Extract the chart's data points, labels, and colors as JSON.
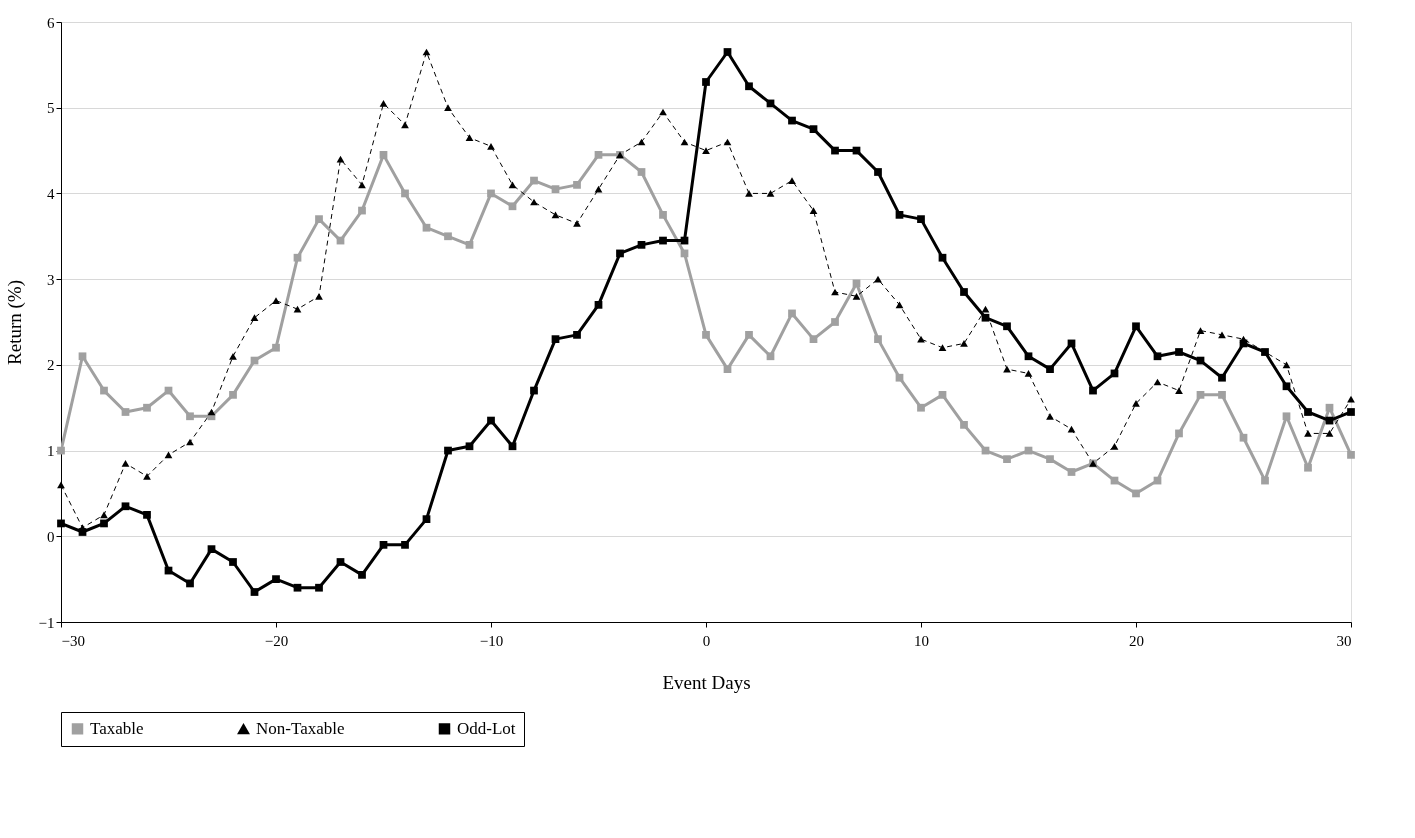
{
  "chart_data": {
    "type": "line",
    "xlabel": "Event Days",
    "ylabel": "Return (%)",
    "x": [
      -30,
      -29,
      -28,
      -27,
      -26,
      -25,
      -24,
      -23,
      -22,
      -21,
      -20,
      -19,
      -18,
      -17,
      -16,
      -15,
      -14,
      -13,
      -12,
      -11,
      -10,
      -9,
      -8,
      -7,
      -6,
      -5,
      -4,
      -3,
      -2,
      -1,
      0,
      1,
      2,
      3,
      4,
      5,
      6,
      7,
      8,
      9,
      10,
      11,
      12,
      13,
      14,
      15,
      16,
      17,
      18,
      19,
      20,
      21,
      22,
      23,
      24,
      25,
      26,
      27,
      28,
      29,
      30
    ],
    "series": [
      {
        "name": "Taxable",
        "color": "#a0a0a0",
        "marker": "square",
        "line_style": "solid",
        "values": [
          1.0,
          2.1,
          1.7,
          1.45,
          1.5,
          1.7,
          1.4,
          1.4,
          1.65,
          2.05,
          2.2,
          3.25,
          3.7,
          3.45,
          3.8,
          4.45,
          4.0,
          3.6,
          3.5,
          3.4,
          4.0,
          3.85,
          4.15,
          4.05,
          4.1,
          4.45,
          4.45,
          4.25,
          3.75,
          3.3,
          2.35,
          1.95,
          2.35,
          2.1,
          2.6,
          2.3,
          2.5,
          2.95,
          2.3,
          1.85,
          1.5,
          1.65,
          1.3,
          1.0,
          0.9,
          1.0,
          0.9,
          0.75,
          0.85,
          0.65,
          0.5,
          0.65,
          1.2,
          1.65,
          1.65,
          1.15,
          0.65,
          1.4,
          0.8,
          1.5,
          0.95
        ]
      },
      {
        "name": "Non-Taxable",
        "color": "#000000",
        "marker": "triangle",
        "line_style": "dashed",
        "values": [
          0.6,
          0.1,
          0.25,
          0.85,
          0.7,
          0.95,
          1.1,
          1.45,
          2.1,
          2.55,
          2.75,
          2.65,
          2.8,
          4.4,
          4.1,
          5.05,
          4.8,
          5.65,
          5.0,
          4.65,
          4.55,
          4.1,
          3.9,
          3.75,
          3.65,
          4.05,
          4.45,
          4.6,
          4.95,
          4.6,
          4.5,
          4.6,
          4.0,
          4.0,
          4.15,
          3.8,
          2.85,
          2.8,
          3.0,
          2.7,
          2.3,
          2.2,
          2.25,
          2.65,
          1.95,
          1.9,
          1.4,
          1.25,
          0.85,
          1.05,
          1.55,
          1.8,
          1.7,
          2.4,
          2.35,
          2.3,
          2.15,
          2.0,
          1.2,
          1.2,
          1.6
        ]
      },
      {
        "name": "Odd-Lot",
        "color": "#000000",
        "marker": "square",
        "line_style": "solid",
        "values": [
          0.15,
          0.05,
          0.15,
          0.35,
          0.25,
          -0.4,
          -0.55,
          -0.15,
          -0.3,
          -0.65,
          -0.5,
          -0.6,
          -0.6,
          -0.3,
          -0.45,
          -0.1,
          -0.1,
          0.2,
          1.0,
          1.05,
          1.35,
          1.05,
          1.7,
          2.3,
          2.35,
          2.7,
          3.3,
          3.4,
          3.45,
          3.45,
          5.3,
          5.65,
          5.25,
          5.05,
          4.85,
          4.75,
          4.5,
          4.5,
          4.25,
          3.75,
          3.7,
          3.25,
          2.85,
          2.55,
          2.45,
          2.1,
          1.95,
          2.25,
          1.7,
          1.9,
          2.45,
          2.1,
          2.15,
          2.05,
          1.85,
          2.25,
          2.15,
          1.75,
          1.45,
          1.35,
          1.45
        ]
      }
    ],
    "xlim": [
      -30,
      30
    ],
    "xticks": [
      -30,
      -20,
      -10,
      0,
      10,
      20,
      30
    ],
    "ylim": [
      -1,
      6
    ],
    "yticks": [
      -1,
      0,
      1,
      2,
      3,
      4,
      5,
      6
    ],
    "grid": "y",
    "legend": "bottom"
  }
}
